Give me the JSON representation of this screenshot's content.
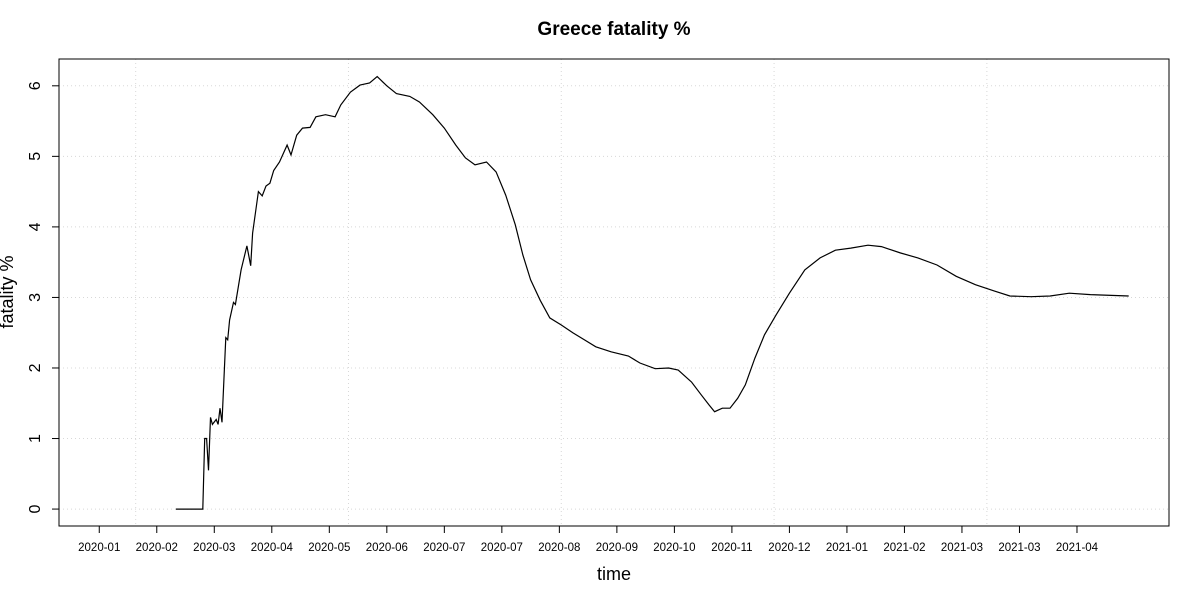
{
  "chart_data": {
    "type": "line",
    "title": "Greece fatality %",
    "x_label": "time",
    "y_label": "fatality %",
    "x": [
      40,
      54,
      55,
      56,
      57,
      58,
      59,
      61,
      62,
      63,
      64,
      66,
      67,
      68,
      70,
      71,
      74,
      77,
      79,
      80,
      83,
      85,
      87,
      89,
      91,
      94,
      98,
      100,
      103,
      106,
      110,
      113,
      118,
      123,
      126,
      131,
      136,
      141,
      145,
      150,
      155,
      162,
      167,
      174,
      180,
      186,
      191,
      196,
      202,
      207,
      212,
      217,
      221,
      225,
      230,
      235,
      241,
      247,
      253,
      259,
      267,
      276,
      282,
      290,
      297,
      302,
      309,
      314,
      318,
      321,
      325,
      329,
      333,
      337,
      342,
      347,
      353,
      360,
      368,
      376,
      384,
      392,
      401,
      408,
      418,
      427,
      437,
      447,
      457,
      467,
      475,
      486,
      496,
      506,
      517,
      537
    ],
    "series": [
      {
        "name": "fatality %",
        "color": "#000000",
        "values": [
          0,
          0,
          1.0,
          1.0,
          0.55,
          1.3,
          1.2,
          1.27,
          1.2,
          1.43,
          1.23,
          2.43,
          2.4,
          2.68,
          2.93,
          2.9,
          3.39,
          3.73,
          3.45,
          3.91,
          4.5,
          4.44,
          4.58,
          4.62,
          4.8,
          4.92,
          5.16,
          5.02,
          5.3,
          5.4,
          5.41,
          5.56,
          5.59,
          5.56,
          5.73,
          5.91,
          6.01,
          6.04,
          6.13,
          6.0,
          5.89,
          5.85,
          5.77,
          5.59,
          5.4,
          5.16,
          4.98,
          4.88,
          4.92,
          4.78,
          4.45,
          4.03,
          3.6,
          3.25,
          2.96,
          2.71,
          2.61,
          2.5,
          2.4,
          2.3,
          2.23,
          2.17,
          2.07,
          1.99,
          2.0,
          1.97,
          1.8,
          1.62,
          1.48,
          1.38,
          1.43,
          1.43,
          1.57,
          1.76,
          2.14,
          2.47,
          2.75,
          3.06,
          3.39,
          3.56,
          3.67,
          3.7,
          3.74,
          3.72,
          3.63,
          3.56,
          3.46,
          3.3,
          3.18,
          3.09,
          3.02,
          3.01,
          3.02,
          3.06,
          3.04,
          3.02
        ]
      }
    ],
    "xlim": [
      -21,
      558
    ],
    "ylim": [
      -0.24,
      6.38
    ],
    "xticks": [
      {
        "value": 0,
        "label": "2020-01"
      },
      {
        "value": 30,
        "label": "2020-02"
      },
      {
        "value": 60,
        "label": "2020-03"
      },
      {
        "value": 90,
        "label": "2020-04"
      },
      {
        "value": 120,
        "label": "2020-05"
      },
      {
        "value": 150,
        "label": "2020-06"
      },
      {
        "value": 180,
        "label": "2020-07"
      },
      {
        "value": 210,
        "label": "2020-07"
      },
      {
        "value": 240,
        "label": "2020-08"
      },
      {
        "value": 270,
        "label": "2020-09"
      },
      {
        "value": 300,
        "label": "2020-10"
      },
      {
        "value": 330,
        "label": "2020-11"
      },
      {
        "value": 360,
        "label": "2020-12"
      },
      {
        "value": 390,
        "label": "2021-01"
      },
      {
        "value": 420,
        "label": "2021-02"
      },
      {
        "value": 450,
        "label": "2021-03"
      },
      {
        "value": 480,
        "label": "2021-03"
      },
      {
        "value": 510,
        "label": "2021-04"
      }
    ],
    "yticks": [
      0,
      1,
      2,
      3,
      4,
      5,
      6
    ],
    "xgrid": [
      19,
      130,
      241,
      352,
      463
    ],
    "grid": true
  }
}
